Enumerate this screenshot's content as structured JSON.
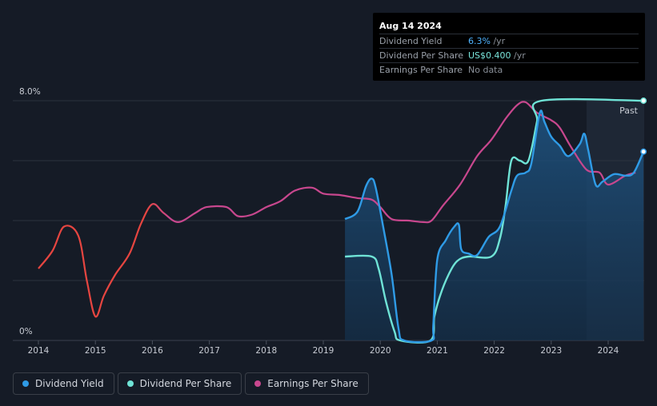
{
  "tooltip": {
    "date": "Aug 14 2024",
    "rows": [
      {
        "label": "Dividend Yield",
        "value": "6.3%",
        "unit": " /yr"
      },
      {
        "label": "Dividend Per Share",
        "value": "US$0.400",
        "unit": " /yr"
      },
      {
        "label": "Earnings Per Share",
        "value": "No data",
        "unit": ""
      }
    ]
  },
  "legend": [
    {
      "label": "Dividend Yield",
      "color": "#2f9be6"
    },
    {
      "label": "Dividend Per Share",
      "color": "#6fe3d6"
    },
    {
      "label": "Earnings Per Share",
      "color": "#c8478e"
    }
  ],
  "chart_data": {
    "type": "line",
    "title": "",
    "xlabel": "",
    "ylabel": "",
    "ylim": [
      0,
      8.0
    ],
    "y_tick_labels": [
      "8.0%",
      "0%"
    ],
    "x_tick_labels": [
      "2014",
      "2015",
      "2016",
      "2017",
      "2018",
      "2019",
      "2020",
      "2021",
      "2022",
      "2023",
      "2024"
    ],
    "past_label": "Past",
    "past_start": 2023.62,
    "x_end": 2024.62,
    "colors": {
      "yield": "#2f9be6",
      "dps": "#6fe3d6",
      "eps_low": "#e64540",
      "eps_high": "#c8478e",
      "grid": "#2c333f",
      "axis_text": "#c8ccd4",
      "area": "#173a59",
      "past_shade": "#1e2735"
    },
    "series": [
      {
        "name": "Earnings Per Share",
        "unit": "% of 8.0% axis scale",
        "points": [
          [
            2014.0,
            2.4
          ],
          [
            2014.25,
            3.0
          ],
          [
            2014.45,
            3.8
          ],
          [
            2014.7,
            3.5
          ],
          [
            2014.85,
            2.0
          ],
          [
            2015.0,
            0.8
          ],
          [
            2015.15,
            1.5
          ],
          [
            2015.35,
            2.2
          ],
          [
            2015.6,
            2.9
          ],
          [
            2015.8,
            3.9
          ],
          [
            2016.0,
            4.55
          ],
          [
            2016.2,
            4.25
          ],
          [
            2016.45,
            3.95
          ],
          [
            2016.75,
            4.25
          ],
          [
            2016.95,
            4.45
          ],
          [
            2017.3,
            4.45
          ],
          [
            2017.5,
            4.15
          ],
          [
            2017.75,
            4.2
          ],
          [
            2018.0,
            4.45
          ],
          [
            2018.25,
            4.65
          ],
          [
            2018.5,
            5.0
          ],
          [
            2018.8,
            5.1
          ],
          [
            2019.0,
            4.9
          ],
          [
            2019.3,
            4.85
          ],
          [
            2019.6,
            4.75
          ],
          [
            2019.85,
            4.7
          ],
          [
            2020.0,
            4.45
          ],
          [
            2020.2,
            4.05
          ],
          [
            2020.5,
            4.0
          ],
          [
            2020.75,
            3.95
          ],
          [
            2020.9,
            4.0
          ],
          [
            2021.1,
            4.5
          ],
          [
            2021.4,
            5.2
          ],
          [
            2021.7,
            6.15
          ],
          [
            2021.95,
            6.7
          ],
          [
            2022.2,
            7.4
          ],
          [
            2022.4,
            7.85
          ],
          [
            2022.55,
            7.95
          ],
          [
            2022.75,
            7.6
          ],
          [
            2023.0,
            7.35
          ],
          [
            2023.15,
            7.1
          ],
          [
            2023.35,
            6.45
          ],
          [
            2023.62,
            5.7
          ],
          [
            2023.85,
            5.6
          ],
          [
            2024.0,
            5.2
          ],
          [
            2024.3,
            5.5
          ],
          [
            2024.48,
            5.6
          ]
        ]
      },
      {
        "name": "Dividend Yield",
        "unit": "%",
        "points": [
          [
            2019.38,
            4.05
          ],
          [
            2019.6,
            4.3
          ],
          [
            2019.75,
            5.15
          ],
          [
            2019.85,
            5.4
          ],
          [
            2019.92,
            5.1
          ],
          [
            2020.05,
            3.8
          ],
          [
            2020.2,
            2.2
          ],
          [
            2020.32,
            0.4
          ],
          [
            2020.42,
            0.0
          ],
          [
            2020.9,
            0.0
          ],
          [
            2020.93,
            0.5
          ],
          [
            2021.0,
            2.7
          ],
          [
            2021.15,
            3.35
          ],
          [
            2021.3,
            3.8
          ],
          [
            2021.38,
            3.85
          ],
          [
            2021.42,
            3.05
          ],
          [
            2021.55,
            2.9
          ],
          [
            2021.7,
            2.85
          ],
          [
            2021.9,
            3.45
          ],
          [
            2022.1,
            3.8
          ],
          [
            2022.3,
            5.0
          ],
          [
            2022.4,
            5.5
          ],
          [
            2022.55,
            5.6
          ],
          [
            2022.65,
            5.9
          ],
          [
            2022.8,
            7.6
          ],
          [
            2022.88,
            7.3
          ],
          [
            2023.0,
            6.8
          ],
          [
            2023.15,
            6.5
          ],
          [
            2023.3,
            6.15
          ],
          [
            2023.5,
            6.55
          ],
          [
            2023.58,
            6.9
          ],
          [
            2023.65,
            6.35
          ],
          [
            2023.78,
            5.2
          ],
          [
            2023.9,
            5.3
          ],
          [
            2024.1,
            5.55
          ],
          [
            2024.3,
            5.5
          ],
          [
            2024.45,
            5.6
          ],
          [
            2024.62,
            6.3
          ]
        ]
      },
      {
        "name": "Dividend Per Share",
        "unit": "% of 8.0% axis scale",
        "points": [
          [
            2019.38,
            2.8
          ],
          [
            2019.85,
            2.8
          ],
          [
            2019.97,
            2.4
          ],
          [
            2020.1,
            1.3
          ],
          [
            2020.25,
            0.3
          ],
          [
            2020.35,
            0.0
          ],
          [
            2020.88,
            0.0
          ],
          [
            2020.95,
            0.8
          ],
          [
            2021.05,
            1.5
          ],
          [
            2021.2,
            2.2
          ],
          [
            2021.35,
            2.65
          ],
          [
            2021.55,
            2.8
          ],
          [
            2021.95,
            2.8
          ],
          [
            2022.1,
            3.4
          ],
          [
            2022.2,
            4.5
          ],
          [
            2022.3,
            6.0
          ],
          [
            2022.45,
            6.0
          ],
          [
            2022.6,
            6.0
          ],
          [
            2022.75,
            7.3
          ],
          [
            2022.83,
            8.0
          ],
          [
            2024.62,
            8.0
          ]
        ]
      }
    ]
  }
}
